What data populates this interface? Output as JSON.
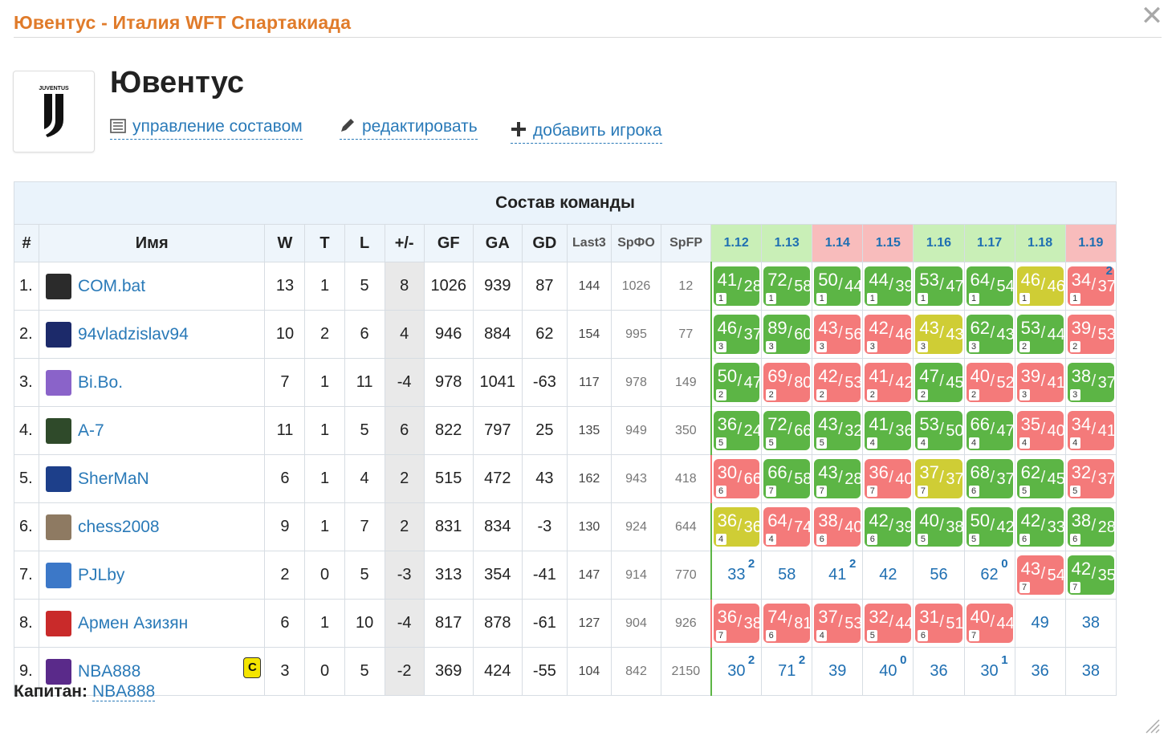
{
  "window": {
    "title": "Ювентус - Италия WFT Спартакиада",
    "close_label": "✕"
  },
  "team": {
    "name": "Ювентус",
    "logo_text": "JUVENTUS",
    "actions": {
      "manage": "управление составом",
      "edit": "редактировать",
      "add_player": "добавить игрока"
    }
  },
  "table": {
    "caption": "Состав команды",
    "headers": {
      "num": "#",
      "name": "Имя",
      "w": "W",
      "t": "T",
      "l": "L",
      "pm": "+/-",
      "gf": "GF",
      "ga": "GA",
      "gd": "GD",
      "last3": "Last3",
      "srfo": "SрФО",
      "spfp": "SpFP"
    },
    "tours": [
      "1.12",
      "1.13",
      "1.14",
      "1.15",
      "1.16",
      "1.17",
      "1.18",
      "1.19"
    ],
    "tour_colors": [
      "g",
      "g",
      "r",
      "r",
      "g",
      "g",
      "g",
      "r"
    ],
    "rows": [
      {
        "num": "1.",
        "name": "COM.bat",
        "avatar": "#2b2b2b",
        "w": "13",
        "t": "1",
        "l": "5",
        "pm": "8",
        "gf": "1026",
        "ga": "939",
        "gd": "87",
        "last3": "144",
        "srfo": "1026",
        "spfp": "12",
        "scores": [
          {
            "c": "g",
            "a": "41",
            "b": "28",
            "m": "1"
          },
          {
            "c": "g",
            "a": "72",
            "b": "58",
            "m": "1"
          },
          {
            "c": "g",
            "a": "50",
            "b": "44",
            "m": "1"
          },
          {
            "c": "g",
            "a": "44",
            "b": "39",
            "m": "1"
          },
          {
            "c": "g",
            "a": "53",
            "b": "47",
            "m": "1"
          },
          {
            "c": "g",
            "a": "64",
            "b": "54",
            "m": "1"
          },
          {
            "c": "y",
            "a": "46",
            "b": "46",
            "m": "1"
          },
          {
            "c": "r",
            "a": "34",
            "b": "37",
            "m": "1",
            "sup": "2"
          }
        ]
      },
      {
        "num": "2.",
        "name": "94vladzislav94",
        "avatar": "#1c2a6a",
        "w": "10",
        "t": "2",
        "l": "6",
        "pm": "4",
        "gf": "946",
        "ga": "884",
        "gd": "62",
        "last3": "154",
        "srfo": "995",
        "spfp": "77",
        "scores": [
          {
            "c": "g",
            "a": "46",
            "b": "37",
            "m": "3"
          },
          {
            "c": "g",
            "a": "89",
            "b": "60",
            "m": "3"
          },
          {
            "c": "r",
            "a": "43",
            "b": "56",
            "m": "3"
          },
          {
            "c": "r",
            "a": "42",
            "b": "46",
            "m": "3"
          },
          {
            "c": "y",
            "a": "43",
            "b": "43",
            "m": "3"
          },
          {
            "c": "g",
            "a": "62",
            "b": "43",
            "m": "3"
          },
          {
            "c": "g",
            "a": "53",
            "b": "44",
            "m": "2"
          },
          {
            "c": "r",
            "a": "39",
            "b": "53",
            "m": "2"
          }
        ]
      },
      {
        "num": "3.",
        "name": "Bi.Bo.",
        "avatar": "#8a63c9",
        "w": "7",
        "t": "1",
        "l": "11",
        "pm": "-4",
        "gf": "978",
        "ga": "1041",
        "gd": "-63",
        "last3": "117",
        "srfo": "978",
        "spfp": "149",
        "scores": [
          {
            "c": "g",
            "a": "50",
            "b": "47",
            "m": "2"
          },
          {
            "c": "r",
            "a": "69",
            "b": "80",
            "m": "2"
          },
          {
            "c": "r",
            "a": "42",
            "b": "53",
            "m": "2"
          },
          {
            "c": "r",
            "a": "41",
            "b": "42",
            "m": "2"
          },
          {
            "c": "g",
            "a": "47",
            "b": "45",
            "m": "2"
          },
          {
            "c": "r",
            "a": "40",
            "b": "52",
            "m": "2"
          },
          {
            "c": "r",
            "a": "39",
            "b": "41",
            "m": "3"
          },
          {
            "c": "g",
            "a": "38",
            "b": "37",
            "m": "3"
          }
        ]
      },
      {
        "num": "4.",
        "name": "A-7",
        "avatar": "#2f4a2a",
        "w": "11",
        "t": "1",
        "l": "5",
        "pm": "6",
        "gf": "822",
        "ga": "797",
        "gd": "25",
        "last3": "135",
        "srfo": "949",
        "spfp": "350",
        "scores": [
          {
            "c": "g",
            "a": "36",
            "b": "24",
            "m": "5"
          },
          {
            "c": "g",
            "a": "72",
            "b": "66",
            "m": "5"
          },
          {
            "c": "g",
            "a": "43",
            "b": "32",
            "m": "5"
          },
          {
            "c": "g",
            "a": "41",
            "b": "36",
            "m": "4"
          },
          {
            "c": "g",
            "a": "53",
            "b": "50",
            "m": "4"
          },
          {
            "c": "g",
            "a": "66",
            "b": "47",
            "m": "4"
          },
          {
            "c": "r",
            "a": "35",
            "b": "40",
            "m": "4"
          },
          {
            "c": "r",
            "a": "34",
            "b": "41",
            "m": "4"
          }
        ]
      },
      {
        "num": "5.",
        "name": "SherMaN",
        "avatar": "#1d3f8a",
        "w": "6",
        "t": "1",
        "l": "4",
        "pm": "2",
        "gf": "515",
        "ga": "472",
        "gd": "43",
        "last3": "162",
        "srfo": "943",
        "spfp": "418",
        "scores": [
          {
            "c": "r",
            "a": "30",
            "b": "66",
            "m": "6"
          },
          {
            "c": "g",
            "a": "66",
            "b": "58",
            "m": "7"
          },
          {
            "c": "g",
            "a": "43",
            "b": "28",
            "m": "7"
          },
          {
            "c": "r",
            "a": "36",
            "b": "40",
            "m": "7"
          },
          {
            "c": "y",
            "a": "37",
            "b": "37",
            "m": "7"
          },
          {
            "c": "g",
            "a": "68",
            "b": "37",
            "m": "6"
          },
          {
            "c": "g",
            "a": "62",
            "b": "45",
            "m": "5"
          },
          {
            "c": "r",
            "a": "32",
            "b": "37",
            "m": "5"
          }
        ]
      },
      {
        "num": "6.",
        "name": "chess2008",
        "avatar": "#8e7a62",
        "w": "9",
        "t": "1",
        "l": "7",
        "pm": "2",
        "gf": "831",
        "ga": "834",
        "gd": "-3",
        "last3": "130",
        "srfo": "924",
        "spfp": "644",
        "scores": [
          {
            "c": "y",
            "a": "36",
            "b": "36",
            "m": "4"
          },
          {
            "c": "r",
            "a": "64",
            "b": "74",
            "m": "4"
          },
          {
            "c": "r",
            "a": "38",
            "b": "40",
            "m": "6"
          },
          {
            "c": "g",
            "a": "42",
            "b": "39",
            "m": "6"
          },
          {
            "c": "g",
            "a": "40",
            "b": "38",
            "m": "5"
          },
          {
            "c": "g",
            "a": "50",
            "b": "42",
            "m": "5"
          },
          {
            "c": "g",
            "a": "42",
            "b": "33",
            "m": "6"
          },
          {
            "c": "g",
            "a": "38",
            "b": "28",
            "m": "6"
          }
        ]
      },
      {
        "num": "7.",
        "name": "PJLby",
        "avatar": "#3c78c8",
        "w": "2",
        "t": "0",
        "l": "5",
        "pm": "-3",
        "gf": "313",
        "ga": "354",
        "gd": "-41",
        "last3": "147",
        "srfo": "914",
        "spfp": "770",
        "scores": [
          {
            "p": "33",
            "sup": "2"
          },
          {
            "p": "58"
          },
          {
            "p": "41",
            "sup": "2"
          },
          {
            "p": "42"
          },
          {
            "p": "56"
          },
          {
            "p": "62",
            "sup": "0"
          },
          {
            "c": "r",
            "a": "43",
            "b": "54",
            "m": "7"
          },
          {
            "c": "g",
            "a": "42",
            "b": "35",
            "m": "7"
          }
        ]
      },
      {
        "num": "8.",
        "name": "Армен Азизян",
        "avatar": "#c92a2a",
        "w": "6",
        "t": "1",
        "l": "10",
        "pm": "-4",
        "gf": "817",
        "ga": "878",
        "gd": "-61",
        "last3": "127",
        "srfo": "904",
        "spfp": "926",
        "scores": [
          {
            "c": "r",
            "a": "36",
            "b": "38",
            "m": "7"
          },
          {
            "c": "r",
            "a": "74",
            "b": "81",
            "m": "6"
          },
          {
            "c": "r",
            "a": "37",
            "b": "53",
            "m": "4"
          },
          {
            "c": "r",
            "a": "32",
            "b": "44",
            "m": "5"
          },
          {
            "c": "r",
            "a": "31",
            "b": "51",
            "m": "6"
          },
          {
            "c": "r",
            "a": "40",
            "b": "44",
            "m": "7"
          },
          {
            "p": "49"
          },
          {
            "p": "38"
          }
        ]
      },
      {
        "num": "9.",
        "name": "NBA888",
        "avatar": "#5a2a8a",
        "captain": "C",
        "w": "3",
        "t": "0",
        "l": "5",
        "pm": "-2",
        "gf": "369",
        "ga": "424",
        "gd": "-55",
        "last3": "104",
        "srfo": "842",
        "spfp": "2150",
        "scores": [
          {
            "p": "30",
            "sup": "2"
          },
          {
            "p": "71",
            "sup": "2"
          },
          {
            "p": "39"
          },
          {
            "p": "40",
            "sup": "0"
          },
          {
            "p": "36"
          },
          {
            "p": "30",
            "sup": "1"
          },
          {
            "p": "36"
          },
          {
            "p": "38"
          }
        ]
      }
    ]
  },
  "captain": {
    "label": "Капитан:",
    "name": "NBA888"
  },
  "colors": {
    "win": "#5cb545",
    "loss": "#f47a7a",
    "draw": "#cfcd35",
    "accent": "#e07b2a",
    "link": "#2a7ab8"
  }
}
